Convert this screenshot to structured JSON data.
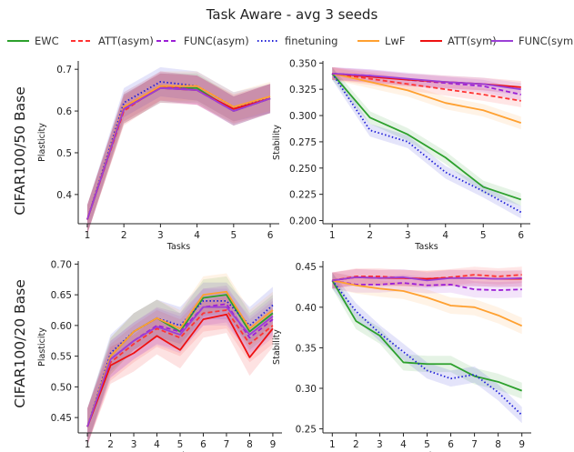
{
  "figure": {
    "title": "Task Aware - avg 3 seeds",
    "row_labels": [
      "CIFAR100/50 Base",
      "CIFAR100/20 Base"
    ]
  },
  "legend": [
    {
      "name": "EWC",
      "color": "#2ca02c",
      "dash": "solid"
    },
    {
      "name": "ATT(asym)",
      "color": "#ff3333",
      "dash": "dashed"
    },
    {
      "name": "FUNC(asym)",
      "color": "#9b1fd6",
      "dash": "dashed"
    },
    {
      "name": "finetuning",
      "color": "#2020d8",
      "dash": "dotted"
    },
    {
      "name": "LwF",
      "color": "#ffa030",
      "dash": "solid"
    },
    {
      "name": "ATT(sym)",
      "color": "#ee1111",
      "dash": "solid"
    },
    {
      "name": "FUNC(sym)",
      "color": "#9b3fd6",
      "dash": "solid"
    }
  ],
  "chart_data": [
    {
      "type": "line",
      "row_label": "CIFAR100/50 Base",
      "xlabel": "Tasks",
      "ylabel": "Plasticity",
      "x": [
        1,
        2,
        3,
        4,
        5,
        6
      ],
      "xticks": [
        "1",
        "2",
        "3",
        "4",
        "5",
        "6"
      ],
      "ylim": [
        0.33,
        0.72
      ],
      "yticks": [
        "0.4",
        "0.5",
        "0.6",
        "0.7"
      ],
      "band": 0.035,
      "series": [
        {
          "name": "EWC",
          "values": [
            0.34,
            0.605,
            0.655,
            0.655,
            0.6,
            0.63
          ]
        },
        {
          "name": "ATT(asym)",
          "values": [
            0.34,
            0.6,
            0.66,
            0.65,
            0.6,
            0.63
          ]
        },
        {
          "name": "FUNC(asym)",
          "values": [
            0.34,
            0.61,
            0.66,
            0.65,
            0.6,
            0.63
          ]
        },
        {
          "name": "finetuning",
          "values": [
            0.34,
            0.62,
            0.67,
            0.66,
            0.61,
            0.63
          ]
        },
        {
          "name": "LwF",
          "values": [
            0.34,
            0.61,
            0.66,
            0.66,
            0.61,
            0.635
          ]
        },
        {
          "name": "ATT(sym)",
          "values": [
            0.34,
            0.605,
            0.655,
            0.65,
            0.605,
            0.63
          ]
        },
        {
          "name": "FUNC(sym)",
          "values": [
            0.34,
            0.605,
            0.655,
            0.65,
            0.6,
            0.63
          ]
        }
      ]
    },
    {
      "type": "line",
      "row_label": "CIFAR100/50 Base",
      "xlabel": "Tasks",
      "ylabel": "Stability",
      "x": [
        1,
        2,
        3,
        4,
        5,
        6
      ],
      "xticks": [
        "1",
        "2",
        "3",
        "4",
        "5",
        "6"
      ],
      "ylim": [
        0.197,
        0.352
      ],
      "yticks": [
        "0.200",
        "0.225",
        "0.250",
        "0.275",
        "0.300",
        "0.325",
        "0.350"
      ],
      "band": 0.006,
      "series": [
        {
          "name": "EWC",
          "values": [
            0.34,
            0.298,
            0.282,
            0.26,
            0.232,
            0.22
          ]
        },
        {
          "name": "ATT(asym)",
          "values": [
            0.34,
            0.335,
            0.33,
            0.325,
            0.32,
            0.314
          ]
        },
        {
          "name": "FUNC(asym)",
          "values": [
            0.34,
            0.338,
            0.334,
            0.331,
            0.328,
            0.32
          ]
        },
        {
          "name": "finetuning",
          "values": [
            0.34,
            0.286,
            0.275,
            0.246,
            0.228,
            0.208
          ]
        },
        {
          "name": "LwF",
          "values": [
            0.34,
            0.332,
            0.324,
            0.312,
            0.305,
            0.293
          ]
        },
        {
          "name": "ATT(sym)",
          "values": [
            0.34,
            0.337,
            0.334,
            0.332,
            0.33,
            0.327
          ]
        },
        {
          "name": "FUNC(sym)",
          "values": [
            0.34,
            0.338,
            0.335,
            0.332,
            0.33,
            0.325
          ]
        }
      ]
    },
    {
      "type": "line",
      "row_label": "CIFAR100/20 Base",
      "xlabel": "Tasks",
      "ylabel": "Plasticity",
      "x": [
        1,
        2,
        3,
        4,
        5,
        6,
        7,
        8,
        9
      ],
      "xticks": [
        "1",
        "2",
        "3",
        "4",
        "5",
        "6",
        "7",
        "8",
        "9"
      ],
      "ylim": [
        0.425,
        0.705
      ],
      "yticks": [
        "0.45",
        "0.50",
        "0.55",
        "0.60",
        "0.65",
        "0.70"
      ],
      "band": 0.03,
      "series": [
        {
          "name": "EWC",
          "values": [
            0.435,
            0.55,
            0.59,
            0.612,
            0.59,
            0.645,
            0.65,
            0.59,
            0.62
          ]
        },
        {
          "name": "ATT(asym)",
          "values": [
            0.435,
            0.54,
            0.57,
            0.595,
            0.58,
            0.62,
            0.625,
            0.57,
            0.6
          ]
        },
        {
          "name": "FUNC(asym)",
          "values": [
            0.435,
            0.545,
            0.575,
            0.6,
            0.59,
            0.63,
            0.635,
            0.58,
            0.61
          ]
        },
        {
          "name": "finetuning",
          "values": [
            0.435,
            0.555,
            0.59,
            0.612,
            0.6,
            0.64,
            0.64,
            0.6,
            0.633
          ]
        },
        {
          "name": "LwF",
          "values": [
            0.435,
            0.55,
            0.59,
            0.612,
            0.595,
            0.65,
            0.655,
            0.595,
            0.625
          ]
        },
        {
          "name": "ATT(sym)",
          "values": [
            0.435,
            0.535,
            0.555,
            0.583,
            0.56,
            0.61,
            0.618,
            0.548,
            0.595
          ]
        },
        {
          "name": "FUNC(sym)",
          "values": [
            0.435,
            0.545,
            0.575,
            0.598,
            0.585,
            0.63,
            0.63,
            0.585,
            0.615
          ]
        }
      ]
    },
    {
      "type": "line",
      "row_label": "CIFAR100/20 Base",
      "xlabel": "Tasks",
      "ylabel": "Stability",
      "x": [
        1,
        2,
        3,
        4,
        5,
        6,
        7,
        8,
        9
      ],
      "xticks": [
        "1",
        "2",
        "3",
        "4",
        "5",
        "6",
        "7",
        "8",
        "9"
      ],
      "ylim": [
        0.245,
        0.457
      ],
      "yticks": [
        "0.25",
        "0.30",
        "0.35",
        "0.40",
        "0.45"
      ],
      "band": 0.01,
      "series": [
        {
          "name": "EWC",
          "values": [
            0.433,
            0.383,
            0.365,
            0.332,
            0.33,
            0.33,
            0.315,
            0.308,
            0.297
          ]
        },
        {
          "name": "ATT(asym)",
          "values": [
            0.433,
            0.438,
            0.438,
            0.436,
            0.435,
            0.437,
            0.44,
            0.438,
            0.44
          ]
        },
        {
          "name": "FUNC(asym)",
          "values": [
            0.433,
            0.428,
            0.428,
            0.43,
            0.427,
            0.428,
            0.422,
            0.421,
            0.422
          ]
        },
        {
          "name": "finetuning",
          "values": [
            0.433,
            0.395,
            0.368,
            0.345,
            0.322,
            0.312,
            0.317,
            0.295,
            0.267
          ]
        },
        {
          "name": "LwF",
          "values": [
            0.433,
            0.427,
            0.423,
            0.42,
            0.412,
            0.402,
            0.4,
            0.39,
            0.377
          ]
        },
        {
          "name": "ATT(sym)",
          "values": [
            0.433,
            0.437,
            0.436,
            0.436,
            0.435,
            0.436,
            0.436,
            0.435,
            0.435
          ]
        },
        {
          "name": "FUNC(sym)",
          "values": [
            0.433,
            0.437,
            0.436,
            0.437,
            0.433,
            0.436,
            0.436,
            0.435,
            0.436
          ]
        }
      ]
    }
  ]
}
